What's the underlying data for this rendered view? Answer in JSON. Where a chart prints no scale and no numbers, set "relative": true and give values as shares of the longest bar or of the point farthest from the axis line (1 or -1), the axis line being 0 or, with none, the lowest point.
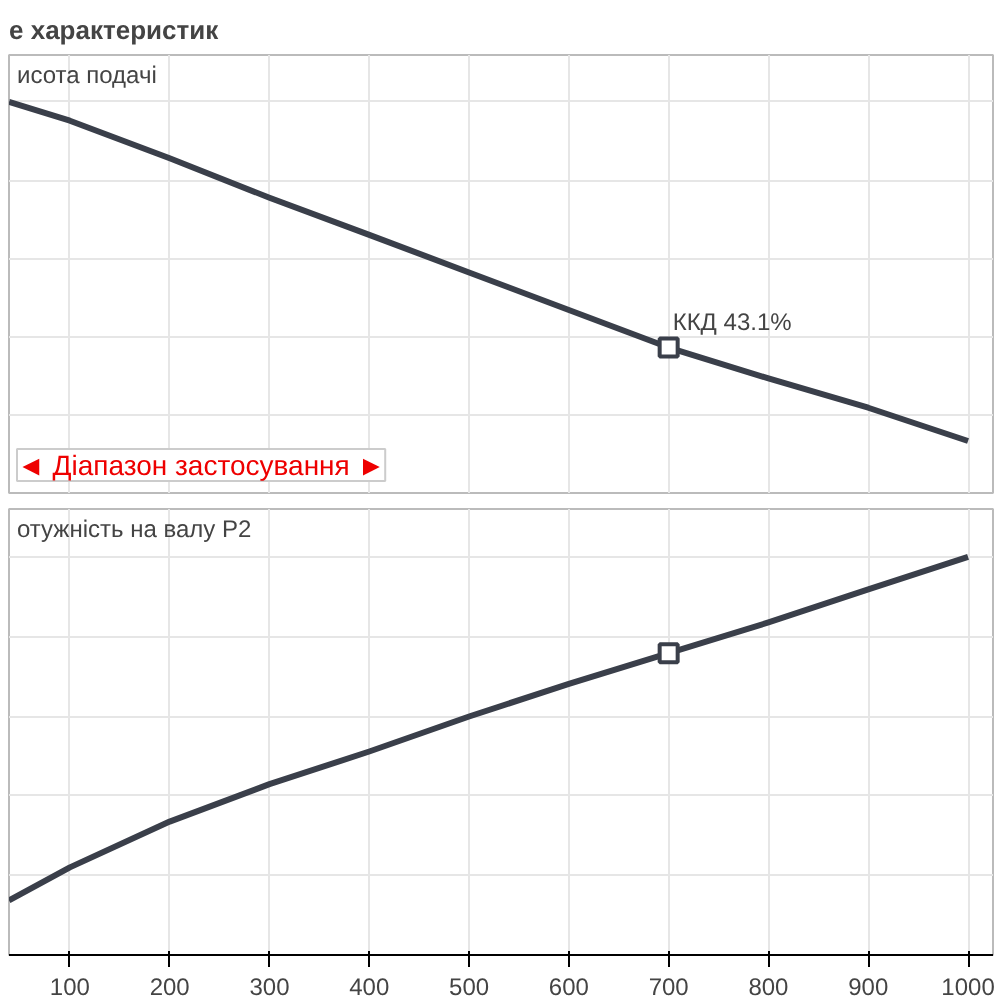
{
  "chart_data": [
    {
      "type": "line",
      "title": "е характеристик",
      "relative": true,
      "xlim": [
        39,
        1025
      ],
      "xticks": [
        100,
        200,
        300,
        400,
        500,
        600,
        700,
        800,
        900,
        1000
      ],
      "tick_labels": false,
      "grid": true,
      "annotations": [
        "исота подачі",
        {
          "text": "ККД  43.1%",
          "x": 700,
          "y": 0.372
        },
        "◄ Діапазон застосування ►"
      ],
      "series": [
        {
          "color": "#3a3f4a",
          "x": [
            39,
            100,
            200,
            300,
            400,
            500,
            600,
            700,
            800,
            900,
            1000
          ],
          "values": [
            1,
            0.952,
            0.856,
            0.755,
            0.66,
            0.564,
            0.468,
            0.372,
            0.293,
            0.218,
            0.133
          ]
        },
        {
          "type": "scatter",
          "marker": "square",
          "color": "#3a3f4a",
          "x": [
            700
          ],
          "values": [
            0.372
          ]
        }
      ]
    },
    {
      "type": "line",
      "relative": true,
      "xlim": [
        39,
        1025
      ],
      "xticks": [
        100,
        200,
        300,
        400,
        500,
        600,
        700,
        800,
        900,
        1000
      ],
      "tick_labels": "x",
      "grid": true,
      "annotations": [
        "отужність на валу  P2"
      ],
      "series": [
        {
          "color": "#3a3f4a",
          "x": [
            39,
            100,
            200,
            300,
            400,
            500,
            600,
            700,
            800,
            900,
            1000
          ],
          "values": [
            0.137,
            0.22,
            0.335,
            0.429,
            0.511,
            0.599,
            0.681,
            0.758,
            0.835,
            0.918,
            1
          ]
        },
        {
          "type": "scatter",
          "marker": "square",
          "color": "#3a3f4a",
          "x": [
            700
          ],
          "values": [
            0.758
          ]
        }
      ]
    }
  ]
}
